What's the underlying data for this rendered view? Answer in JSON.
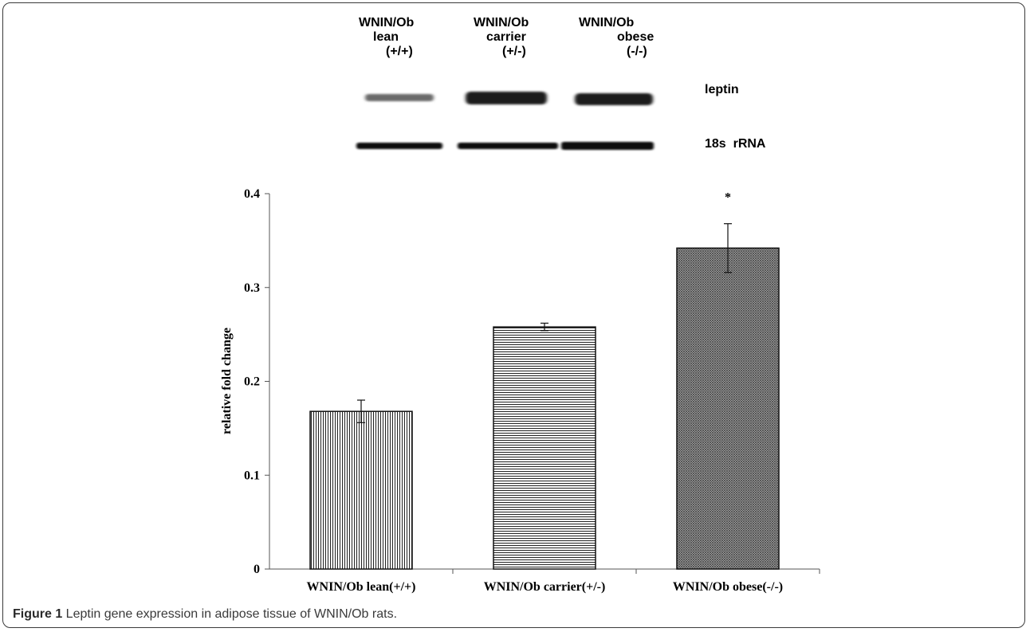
{
  "blot": {
    "lanes": [
      {
        "line1": "WNIN/Ob",
        "line2": "lean",
        "line3": "(+/+)"
      },
      {
        "line1": "WNIN/Ob",
        "line2": "carrier",
        "line3": "(+/-)"
      },
      {
        "line1": "WNIN/Ob",
        "line2": "obese",
        "line3": "(-/-)"
      }
    ],
    "rows": [
      "leptin",
      "18s  rRNA"
    ]
  },
  "chart_data": {
    "type": "bar",
    "categories": [
      "WNIN/Ob lean(+/+)",
      "WNIN/Ob carrier(+/-)",
      "WNIN/Ob obese(-/-)"
    ],
    "values": [
      0.168,
      0.258,
      0.342
    ],
    "error": [
      0.012,
      0.004,
      0.026
    ],
    "significance": [
      "",
      "",
      "*"
    ],
    "patterns": [
      "vertical-lines",
      "horizontal-lines",
      "crosshatch"
    ],
    "ylabel": "relative fold change",
    "ylim": [
      0,
      0.4
    ],
    "yticks": [
      "0",
      "0.1",
      "0.2",
      "0.3",
      "0.4"
    ],
    "grid": false
  },
  "caption": {
    "label": "Figure 1",
    "text": " Leptin gene expression in adipose tissue of WNIN/Ob rats."
  }
}
